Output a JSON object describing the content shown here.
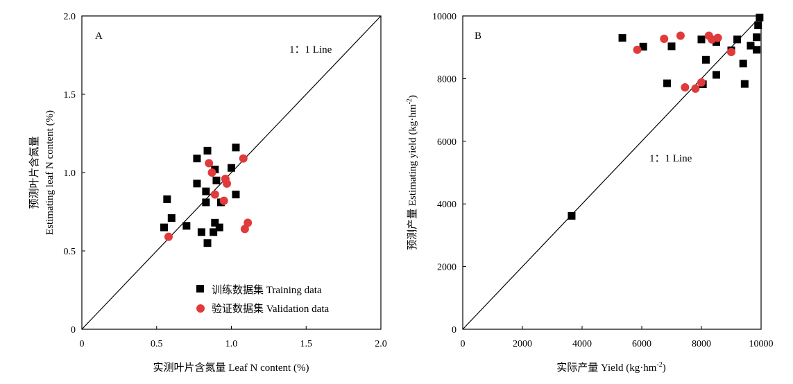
{
  "chart_data": [
    {
      "panel": "A",
      "type": "scatter",
      "xlabel": "实测叶片含氮量 Leaf N content (%)",
      "ylabel_line1": "预测叶片含氮量",
      "ylabel_line2": "Estimating leaf N content (%)",
      "xlim": [
        0,
        2.0
      ],
      "ylim": [
        0,
        2.0
      ],
      "xticks": [
        0,
        0.5,
        1.0,
        1.5,
        2.0
      ],
      "xtick_labels": [
        "0",
        "0.5",
        "1.0",
        "1.5",
        "2.0"
      ],
      "yticks": [
        0,
        0.5,
        1.0,
        1.5,
        2.0
      ],
      "ytick_labels": [
        "0",
        "0.5",
        "1.0",
        "1.5",
        "2.0"
      ],
      "annotation": "1：1 Line",
      "reference_line": "y = x",
      "legend_position": "bottom-right",
      "series": [
        {
          "name": "训练数据集 Training data",
          "marker": "square",
          "color": "#000000",
          "points": [
            [
              0.55,
              0.65
            ],
            [
              0.57,
              0.83
            ],
            [
              0.6,
              0.71
            ],
            [
              0.7,
              0.66
            ],
            [
              0.77,
              1.09
            ],
            [
              0.77,
              0.93
            ],
            [
              0.8,
              0.62
            ],
            [
              0.83,
              0.88
            ],
            [
              0.83,
              0.81
            ],
            [
              0.84,
              1.14
            ],
            [
              0.84,
              0.55
            ],
            [
              0.88,
              0.62
            ],
            [
              0.89,
              0.68
            ],
            [
              0.89,
              1.02
            ],
            [
              0.9,
              0.95
            ],
            [
              0.92,
              0.65
            ],
            [
              0.93,
              0.81
            ],
            [
              1.0,
              1.03
            ],
            [
              1.03,
              1.16
            ],
            [
              1.03,
              0.86
            ]
          ]
        },
        {
          "name": "验证数据集 Validation data",
          "marker": "circle",
          "color": "#e03a3a",
          "points": [
            [
              0.58,
              0.59
            ],
            [
              0.85,
              1.06
            ],
            [
              0.87,
              1.0
            ],
            [
              0.89,
              0.86
            ],
            [
              0.95,
              0.82
            ],
            [
              0.96,
              0.96
            ],
            [
              0.97,
              0.93
            ],
            [
              1.08,
              1.09
            ],
            [
              1.09,
              0.64
            ],
            [
              1.11,
              0.68
            ]
          ]
        }
      ]
    },
    {
      "panel": "B",
      "type": "scatter",
      "xlabel": "实际产量 Yield (kg·hm",
      "xlabel_sup": "-2",
      "xlabel_end": ")",
      "ylabel": "预测产量 Estimating yield (kg·hm",
      "ylabel_sup": "-2",
      "ylabel_end": ")",
      "xlim": [
        0,
        10000
      ],
      "ylim": [
        0,
        10000
      ],
      "xticks": [
        0,
        2000,
        4000,
        6000,
        8000,
        10000
      ],
      "xtick_labels": [
        "0",
        "2000",
        "4000",
        "6000",
        "8000",
        "10000"
      ],
      "yticks": [
        0,
        2000,
        4000,
        6000,
        8000,
        10000
      ],
      "ytick_labels": [
        "0",
        "2000",
        "4000",
        "6000",
        "8000",
        "10000"
      ],
      "annotation": "1：1 Line",
      "reference_line": "y = x",
      "series": [
        {
          "name": "训练数据集 Training data",
          "marker": "square",
          "color": "#000000",
          "points": [
            [
              3650,
              3620
            ],
            [
              5350,
              9300
            ],
            [
              6050,
              9020
            ],
            [
              6850,
              7850
            ],
            [
              7000,
              9030
            ],
            [
              8000,
              9250
            ],
            [
              8050,
              7820
            ],
            [
              8150,
              8600
            ],
            [
              8500,
              8120
            ],
            [
              8500,
              9170
            ],
            [
              9000,
              8900
            ],
            [
              9200,
              9250
            ],
            [
              9400,
              8480
            ],
            [
              9450,
              7830
            ],
            [
              9650,
              9050
            ],
            [
              9850,
              8920
            ],
            [
              9850,
              9320
            ],
            [
              9900,
              9700
            ],
            [
              9950,
              9950
            ]
          ]
        },
        {
          "name": "验证数据集 Validation data",
          "marker": "circle",
          "color": "#e03a3a",
          "points": [
            [
              5850,
              8920
            ],
            [
              6750,
              9270
            ],
            [
              7300,
              9370
            ],
            [
              7450,
              7720
            ],
            [
              7800,
              7680
            ],
            [
              8000,
              7880
            ],
            [
              8250,
              9370
            ],
            [
              8350,
              9250
            ],
            [
              8550,
              9300
            ],
            [
              9000,
              8850
            ]
          ]
        }
      ]
    }
  ]
}
